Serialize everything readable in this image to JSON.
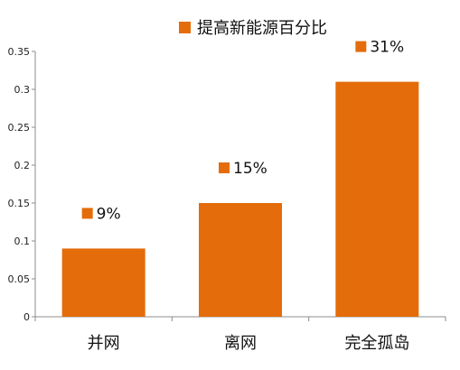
{
  "chart_data": {
    "type": "bar",
    "categories": [
      "并网",
      "离网",
      "完全孤岛"
    ],
    "series": [
      {
        "name": "提高新能源百分比",
        "values": [
          0.09,
          0.15,
          0.31
        ],
        "data_labels": [
          "9%",
          "15%",
          "31%"
        ]
      }
    ],
    "title": "",
    "xlabel": "",
    "ylabel": "",
    "ylim": [
      0,
      0.35
    ],
    "yticks": [
      0,
      0.05,
      0.1,
      0.15,
      0.2,
      0.25,
      0.3,
      0.35
    ],
    "ytick_labels": [
      "0",
      "0.05",
      "0.1",
      "0.15",
      "0.2",
      "0.25",
      "0.3",
      "0.35"
    ],
    "grid": false,
    "legend_position": "top-center",
    "colors": {
      "bar": "#E46C0A",
      "axis": "#8C8C8C"
    }
  }
}
